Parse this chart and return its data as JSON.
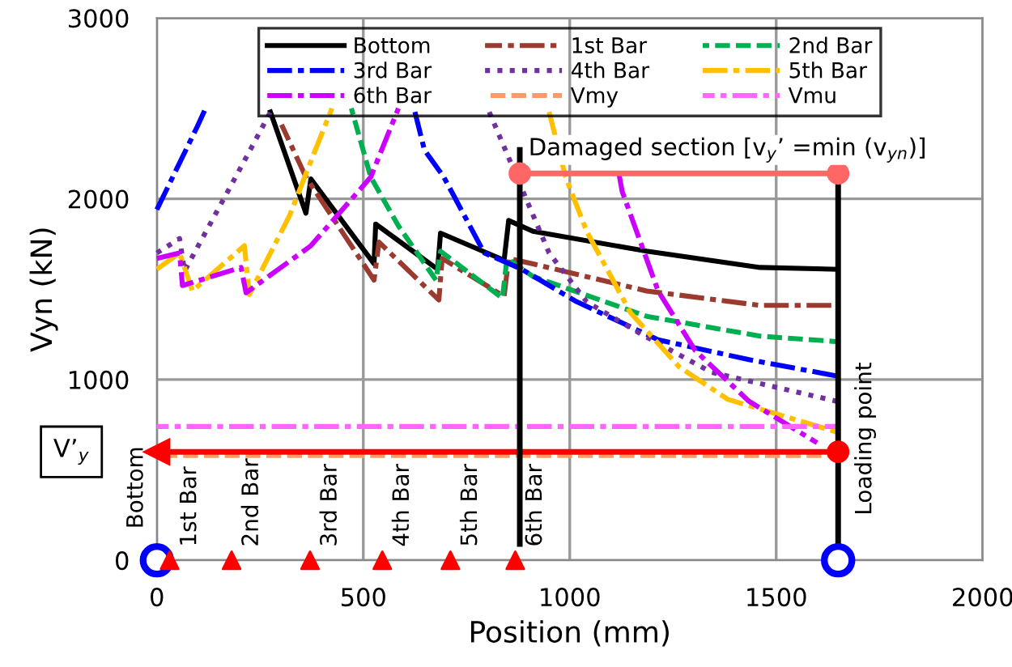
{
  "chart_data": {
    "type": "line",
    "xlabel": "Position (mm)",
    "ylabel": "Vyn (kN)",
    "xlim": [
      0,
      2000
    ],
    "ylim": [
      0,
      3000
    ],
    "xticks": [
      0,
      500,
      1000,
      1500,
      2000
    ],
    "yticks": [
      0,
      1000,
      2000,
      3000
    ],
    "grid": true,
    "legend": "top",
    "series": [
      {
        "name": "Bottom",
        "color": "#000000",
        "line_style": "solid",
        "x": [
          275,
          361,
          373,
          526,
          530,
          680,
          687,
          841,
          852,
          911,
          1186,
          1461,
          1646
        ],
        "values": [
          2480,
          1920,
          2110,
          1640,
          1860,
          1610,
          1810,
          1660,
          1880,
          1820,
          1710,
          1620,
          1610
        ]
      },
      {
        "name": "1st Bar",
        "color": "#9b3a2f",
        "line_style": "dashdot",
        "x": [
          302,
          361,
          526,
          538,
          683,
          691,
          841,
          852,
          911,
          1186,
          1461,
          1646
        ],
        "values": [
          2410,
          2120,
          1550,
          1760,
          1440,
          1670,
          1460,
          1670,
          1640,
          1490,
          1410,
          1410
        ]
      },
      {
        "name": "2nd Bar",
        "color": "#00b050",
        "line_style": "dashed",
        "x": [
          471,
          518,
          585,
          676,
          687,
          837,
          848,
          911,
          1186,
          1461,
          1646
        ],
        "values": [
          2500,
          2120,
          1850,
          1550,
          1710,
          1450,
          1670,
          1570,
          1350,
          1240,
          1210
        ]
      },
      {
        "name": "3rd Bar",
        "color": "#0000ff",
        "line_style": "dashdot",
        "x": [
          0,
          98,
          118,
          400,
          625,
          648,
          695,
          723,
          793,
          884,
          1017,
          1214,
          1434,
          1646
        ],
        "values": [
          1940,
          2400,
          2500,
          null,
          2480,
          2270,
          2120,
          2000,
          1700,
          1610,
          1430,
          1220,
          1110,
          1020
        ]
      },
      {
        "name": "4th Bar",
        "color": "#7030a0",
        "line_style": "dotted",
        "x": [
          0,
          55,
          67,
          212,
          275,
          500,
          805,
          872,
          911,
          950,
          1041,
          1174,
          1343,
          1646
        ],
        "values": [
          1700,
          1780,
          1600,
          2210,
          2480,
          null,
          2480,
          2120,
          1910,
          1700,
          1430,
          1250,
          1040,
          880
        ]
      },
      {
        "name": "5th Bar",
        "color": "#ffc000",
        "line_style": "dashdot",
        "x": [
          0,
          55,
          86,
          212,
          224,
          322,
          389,
          424,
          700,
          950,
          990,
          1041,
          1147,
          1265,
          1383,
          1646
        ],
        "values": [
          1610,
          1700,
          1490,
          1740,
          1470,
          1910,
          2300,
          2500,
          null,
          2480,
          2120,
          1820,
          1370,
          1070,
          890,
          710
        ]
      },
      {
        "name": "6th Bar",
        "color": "#cc00ff",
        "line_style": "dashdot",
        "x": [
          0,
          55,
          62,
          204,
          216,
          373,
          518,
          585,
          900,
          1119,
          1127,
          1214,
          1304,
          1434,
          1599
        ],
        "values": [
          1670,
          1700,
          1520,
          1620,
          1480,
          1740,
          2120,
          2500,
          null,
          2140,
          2040,
          1490,
          1160,
          880,
          650
        ]
      },
      {
        "name": "Vmy",
        "color": "#ff9966",
        "line_style": "dashed",
        "x": [
          0,
          1650
        ],
        "values": [
          580,
          580
        ]
      },
      {
        "name": "Vmu",
        "color": "#ff66ff",
        "line_style": "dashdot",
        "x": [
          0,
          1650
        ],
        "values": [
          740,
          740
        ]
      },
      {
        "color": "#ff0000",
        "line_style": "solid",
        "marker": "circle",
        "x": [
          1650,
          0
        ],
        "values": [
          600,
          600
        ]
      },
      {
        "color": "#ff6666",
        "line_style": "solid",
        "marker": "circle",
        "x": [
          879,
          1650
        ],
        "values": [
          2140,
          2140
        ]
      },
      {
        "color": "#000000",
        "line_style": "solid",
        "x": [
          879,
          879
        ],
        "values": [
          2270,
          90
        ]
      },
      {
        "color": "#000000",
        "line_style": "solid",
        "x": [
          1650,
          1650
        ],
        "values": [
          2140,
          0
        ]
      },
      {
        "type": "scatter",
        "color": "#0000ff",
        "marker": "circle",
        "x": [
          0,
          1650
        ],
        "values": [
          0,
          0
        ]
      },
      {
        "type": "scatter",
        "color": "#ff0000",
        "marker": "triangle",
        "x": [
          31,
          181,
          371,
          546,
          711,
          868
        ],
        "values": [
          0,
          0,
          0,
          0,
          0,
          0
        ]
      }
    ],
    "annotations": [
      {
        "text": "Damaged section [v$_{y}$’ =min (v$_{yn}$)]",
        "x": 900,
        "y": 2270
      },
      "V’$_{y}$",
      "Bottom",
      "1st Bar",
      "2nd Bar",
      "3rd Bar",
      "4th Bar",
      "5th Bar",
      "6th Bar",
      "Loading point"
    ]
  }
}
